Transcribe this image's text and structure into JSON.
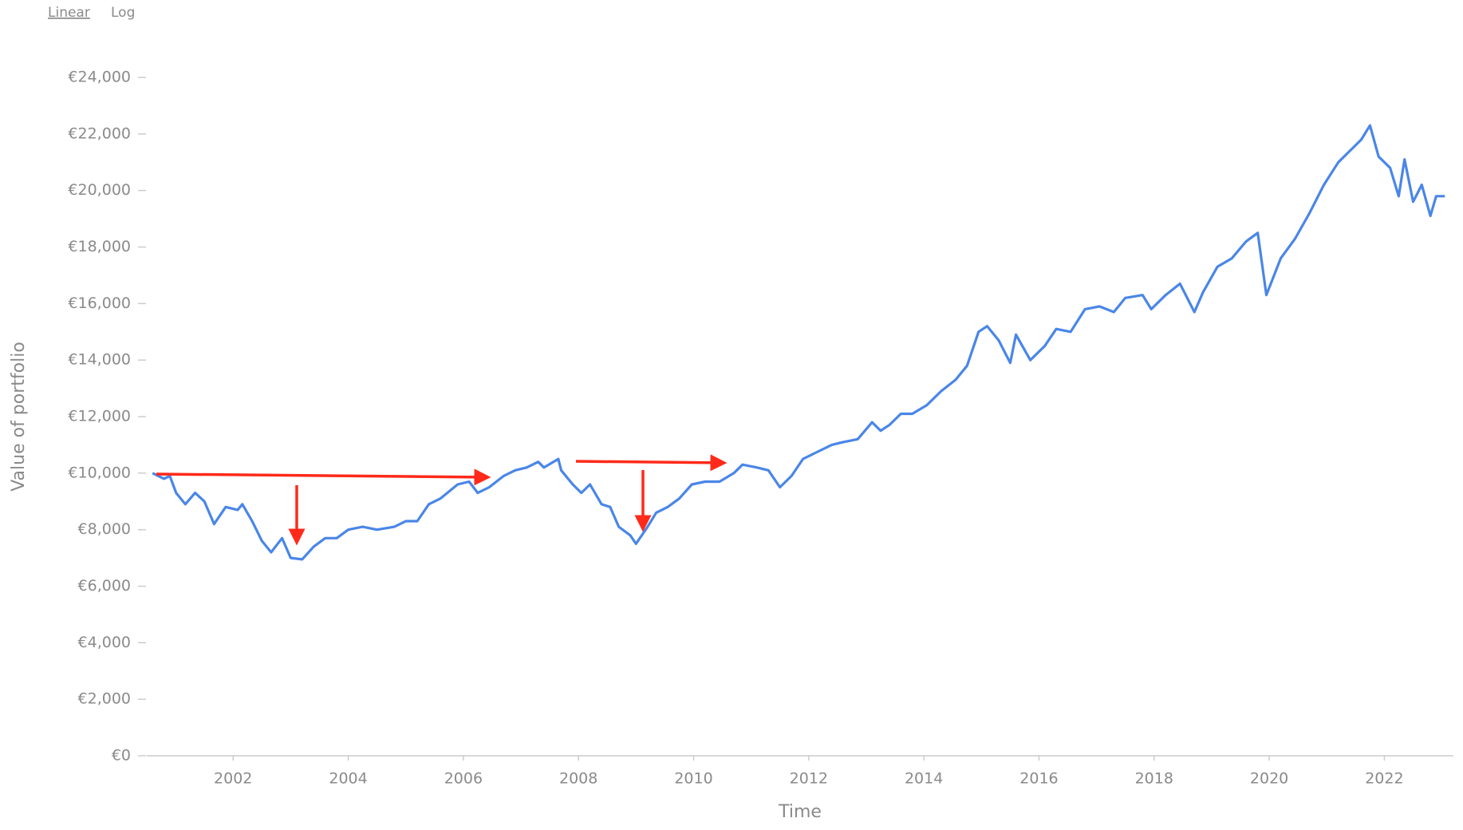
{
  "toggles": [
    "Linear",
    "Log"
  ],
  "chart_data": {
    "type": "line",
    "x_label": "Time",
    "y_label": "Value of portfolio",
    "xlim": [
      2000.5,
      2023.2
    ],
    "xticks": [
      2002,
      2004,
      2006,
      2008,
      2010,
      2012,
      2014,
      2016,
      2018,
      2020,
      2022
    ],
    "ylim": [
      0,
      24000
    ],
    "yticks": [
      {
        "value": 0,
        "label": "€0"
      },
      {
        "value": 2000,
        "label": "€2,000"
      },
      {
        "value": 4000,
        "label": "€4,000"
      },
      {
        "value": 6000,
        "label": "€6,000"
      },
      {
        "value": 8000,
        "label": "€8,000"
      },
      {
        "value": 10000,
        "label": "€10,000"
      },
      {
        "value": 12000,
        "label": "€12,000"
      },
      {
        "value": 14000,
        "label": "€14,000"
      },
      {
        "value": 16000,
        "label": "€16,000"
      },
      {
        "value": 18000,
        "label": "€18,000"
      },
      {
        "value": 20000,
        "label": "€20,000"
      },
      {
        "value": 22000,
        "label": "€22,000"
      },
      {
        "value": 24000,
        "label": "€24,000"
      }
    ],
    "x": [
      2000.6,
      2000.8,
      2000.9,
      2001.01,
      2001.17,
      2001.34,
      2001.5,
      2001.67,
      2001.87,
      2002.08,
      2002.16,
      2002.33,
      2002.5,
      2002.66,
      2002.85,
      2003.0,
      2003.2,
      2003.4,
      2003.6,
      2003.8,
      2004.0,
      2004.25,
      2004.5,
      2004.8,
      2005.0,
      2005.2,
      2005.4,
      2005.6,
      2005.9,
      2006.1,
      2006.25,
      2006.45,
      2006.7,
      2006.9,
      2007.1,
      2007.3,
      2007.4,
      2007.65,
      2007.7,
      2007.9,
      2008.05,
      2008.2,
      2008.4,
      2008.55,
      2008.7,
      2008.9,
      2009.0,
      2009.2,
      2009.35,
      2009.55,
      2009.75,
      2009.97,
      2010.2,
      2010.45,
      2010.7,
      2010.85,
      2011.1,
      2011.3,
      2011.5,
      2011.7,
      2011.9,
      2012.1,
      2012.4,
      2012.6,
      2012.85,
      2013.1,
      2013.25,
      2013.4,
      2013.6,
      2013.8,
      2014.05,
      2014.3,
      2014.55,
      2014.75,
      2014.95,
      2015.1,
      2015.3,
      2015.5,
      2015.6,
      2015.85,
      2016.1,
      2016.3,
      2016.55,
      2016.8,
      2017.05,
      2017.3,
      2017.5,
      2017.8,
      2017.95,
      2018.2,
      2018.45,
      2018.7,
      2018.85,
      2019.1,
      2019.35,
      2019.6,
      2019.8,
      2019.95,
      2020.2,
      2020.45,
      2020.7,
      2020.95,
      2021.2,
      2021.4,
      2021.6,
      2021.75,
      2021.9,
      2022.1,
      2022.25,
      2022.35,
      2022.5,
      2022.65,
      2022.8,
      2022.9,
      2023.05
    ],
    "series": [
      {
        "name": "Value of portfolio",
        "color": "#4a86e8",
        "values": [
          10000,
          9800,
          9900,
          9300,
          8900,
          9300,
          9000,
          8200,
          8800,
          8700,
          8900,
          8300,
          7600,
          7200,
          7700,
          7000,
          6950,
          7400,
          7700,
          7700,
          8000,
          8100,
          8000,
          8100,
          8300,
          8300,
          8900,
          9100,
          9600,
          9700,
          9300,
          9500,
          9900,
          10100,
          10200,
          10400,
          10200,
          10500,
          10100,
          9600,
          9300,
          9600,
          8900,
          8800,
          8100,
          7800,
          7500,
          8100,
          8600,
          8800,
          9100,
          9600,
          9700,
          9700,
          10000,
          10300,
          10200,
          10100,
          9500,
          9900,
          10500,
          10700,
          11000,
          11100,
          11200,
          11800,
          11500,
          11700,
          12100,
          12100,
          12400,
          12900,
          13300,
          13800,
          15000,
          15200,
          14700,
          13900,
          14900,
          14000,
          14500,
          15100,
          15000,
          15800,
          15900,
          15700,
          16200,
          16300,
          15800,
          16300,
          16700,
          15700,
          16400,
          17300,
          17600,
          18200,
          18500,
          16300,
          17600,
          18300,
          19200,
          20200,
          21000,
          21400,
          21800,
          22300,
          21200,
          20800,
          19800,
          21100,
          19600,
          20200,
          19100,
          19800,
          19800
        ]
      }
    ]
  }
}
